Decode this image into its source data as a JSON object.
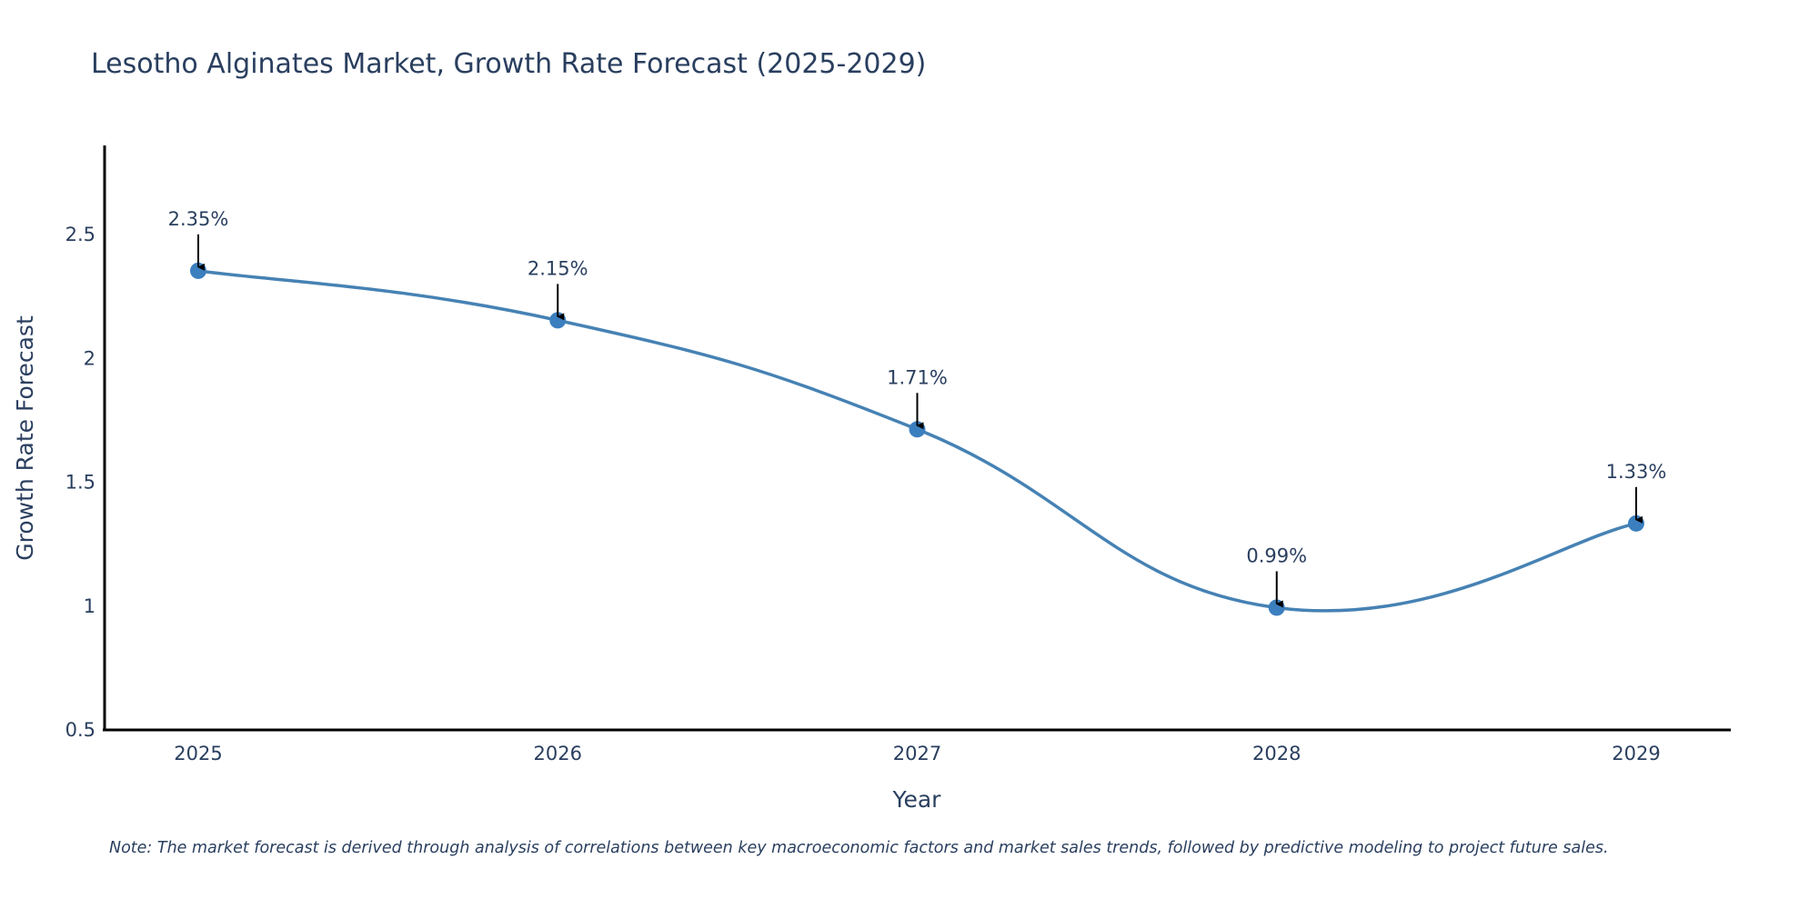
{
  "chart_data": {
    "type": "line",
    "title": "Lesotho Alginates Market, Growth Rate Forecast (2025-2029)",
    "xlabel": "Year",
    "ylabel": "Growth Rate Forecast",
    "categories": [
      "2025",
      "2026",
      "2027",
      "2028",
      "2029"
    ],
    "series": [
      {
        "name": "Growth Rate Forecast",
        "values": [
          2.35,
          2.15,
          1.71,
          0.99,
          1.33
        ],
        "labels": [
          "2.35%",
          "2.15%",
          "1.71%",
          "0.99%",
          "1.33%"
        ],
        "color": "#4682b4",
        "line_shape": "spline"
      }
    ],
    "yticks": [
      0.5,
      1,
      1.5,
      2,
      2.5
    ],
    "ytick_labels": [
      "0.5",
      "1",
      "1.5",
      "2",
      "2.5"
    ],
    "ylim": [
      0.5,
      2.85
    ],
    "grid": false,
    "legend": "none",
    "annotations": "arrow above each point with percentage label",
    "note": "Note: The market forecast is derived through analysis of correlations between key macroeconomic factors and market sales trends, followed by predictive modeling to project future sales."
  }
}
